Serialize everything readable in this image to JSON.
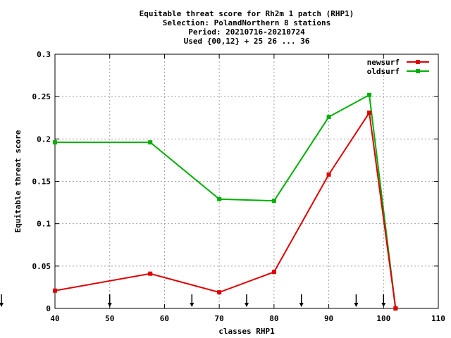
{
  "chart_data": {
    "type": "line",
    "title_lines": [
      "Equitable threat score  for Rh2m 1 patch (RHP1)",
      "Selection: PolandNorthern      8 stations",
      "Period: 20210716-20210724",
      "Used {00,12} + 25 26 ... 36"
    ],
    "xlabel": "classes RHP1",
    "ylabel": "Equitable threat score",
    "xlim": [
      40,
      110
    ],
    "ylim": [
      0,
      0.3
    ],
    "x_ticks": [
      40,
      50,
      60,
      70,
      80,
      90,
      100,
      110
    ],
    "y_ticks": [
      0,
      0.05,
      0.1,
      0.15,
      0.2,
      0.25,
      0.3
    ],
    "y_tick_labels": [
      "0",
      "0.05",
      "0.1",
      "0.15",
      "0.2",
      "0.25",
      "0.3"
    ],
    "grid": true,
    "legend_position": "top-right",
    "series": [
      {
        "name": "newsurf",
        "color": "#e00000",
        "x": [
          40,
          57.4,
          70,
          80,
          90,
          97.4,
          102.2
        ],
        "y": [
          0.021,
          0.041,
          0.019,
          0.043,
          0.158,
          0.231,
          0.0
        ]
      },
      {
        "name": "oldsurf",
        "color": "#00b000",
        "x": [
          40,
          57.4,
          70,
          80,
          90,
          97.4,
          102.2
        ],
        "y": [
          0.196,
          0.196,
          0.129,
          0.127,
          0.226,
          0.252,
          0.0
        ]
      }
    ],
    "threshold_markers_x": [
      30,
      50,
      65,
      75,
      85,
      95,
      100
    ]
  }
}
